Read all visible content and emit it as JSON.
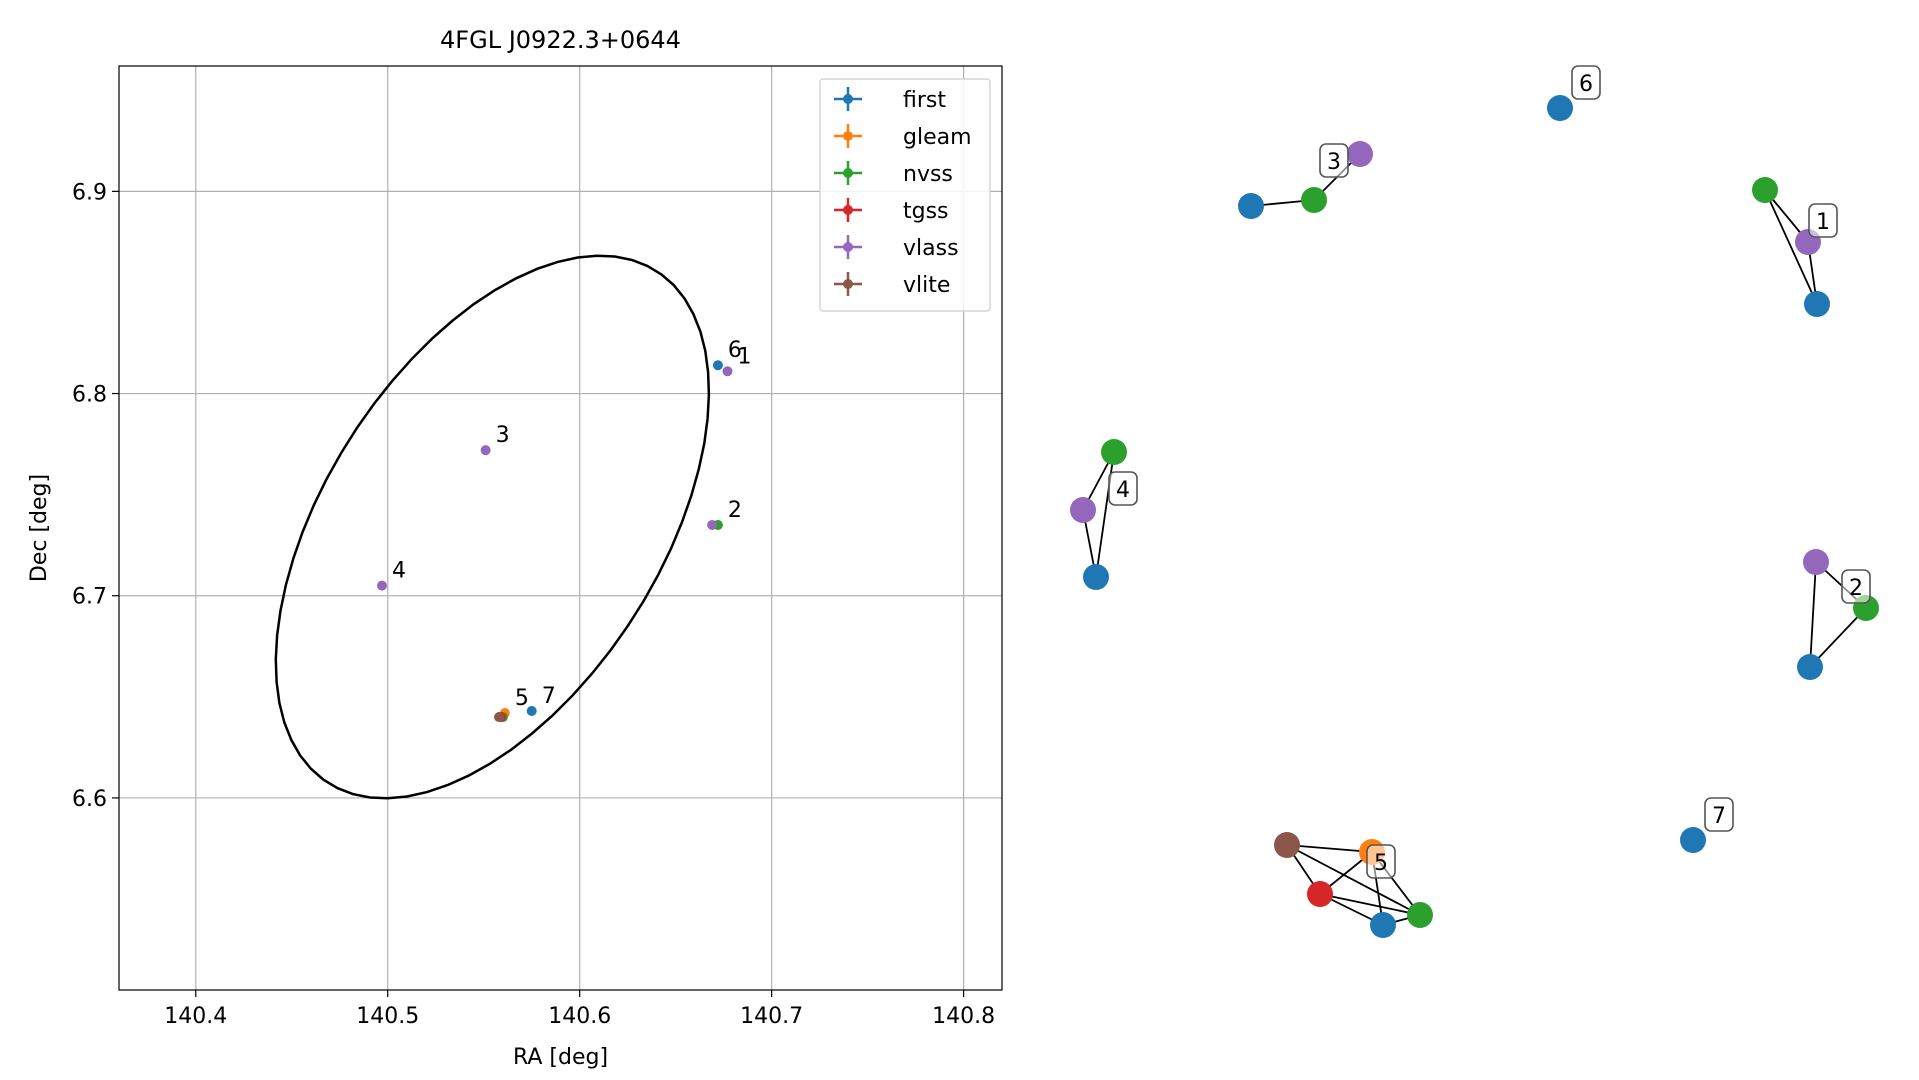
{
  "chart_data": [
    {
      "type": "scatter",
      "title": "4FGL J0922.3+0644",
      "xlabel": "RA [deg]",
      "ylabel": "Dec [deg]",
      "xlim": [
        140.36,
        140.82
      ],
      "ylim": [
        6.505,
        6.962
      ],
      "xticks": [
        140.4,
        140.5,
        140.6,
        140.7,
        140.8
      ],
      "yticks": [
        6.6,
        6.7,
        6.8,
        6.9
      ],
      "xtick_labels": [
        "140.4",
        "140.5",
        "140.6",
        "140.7",
        "140.8"
      ],
      "ytick_labels": [
        "6.6",
        "6.7",
        "6.8",
        "6.9"
      ],
      "grid": true,
      "legend_position": "top-right",
      "colors": {
        "first": "#1f77b4",
        "gleam": "#ff7f0e",
        "nvss": "#2ca02c",
        "tgss": "#d62728",
        "vlass": "#9467bd",
        "vlite": "#8c564b"
      },
      "series": [
        {
          "name": "first",
          "points": [
            {
              "x": 140.672,
              "y": 6.814
            },
            {
              "x": 140.575,
              "y": 6.643
            },
            {
              "x": 140.559,
              "y": 6.64
            }
          ]
        },
        {
          "name": "gleam",
          "points": [
            {
              "x": 140.561,
              "y": 6.642
            }
          ]
        },
        {
          "name": "nvss",
          "points": [
            {
              "x": 140.672,
              "y": 6.735
            },
            {
              "x": 140.56,
              "y": 6.64
            }
          ]
        },
        {
          "name": "tgss",
          "points": [
            {
              "x": 140.559,
              "y": 6.64
            }
          ]
        },
        {
          "name": "vlass",
          "points": [
            {
              "x": 140.677,
              "y": 6.811
            },
            {
              "x": 140.669,
              "y": 6.735
            },
            {
              "x": 140.551,
              "y": 6.772
            },
            {
              "x": 140.497,
              "y": 6.705
            }
          ]
        },
        {
          "name": "vlite",
          "points": [
            {
              "x": 140.558,
              "y": 6.64
            }
          ]
        }
      ],
      "annotations": [
        {
          "text": "1",
          "x": 140.677,
          "y": 6.811
        },
        {
          "text": "2",
          "x": 140.672,
          "y": 6.735
        },
        {
          "text": "3",
          "x": 140.551,
          "y": 6.772
        },
        {
          "text": "4",
          "x": 140.497,
          "y": 6.705
        },
        {
          "text": "5",
          "x": 140.561,
          "y": 6.642
        },
        {
          "text": "6",
          "x": 140.672,
          "y": 6.814
        },
        {
          "text": "7",
          "x": 140.575,
          "y": 6.643
        }
      ],
      "ellipse": {
        "center_ra": 140.5545,
        "center_dec": 6.734,
        "semi_major_deg": 0.1525,
        "semi_minor_deg": 0.0855,
        "angle_deg": 55
      }
    },
    {
      "type": "network-graph",
      "groups": [
        {
          "label": "1",
          "nodes": [
            "nvss",
            "vlass",
            "first"
          ],
          "edges": [
            [
              0,
              1
            ],
            [
              0,
              2
            ],
            [
              1,
              2
            ]
          ]
        },
        {
          "label": "2",
          "nodes": [
            "vlass",
            "nvss",
            "first"
          ],
          "edges": [
            [
              0,
              1
            ],
            [
              0,
              2
            ],
            [
              1,
              2
            ]
          ]
        },
        {
          "label": "3",
          "nodes": [
            "first",
            "nvss",
            "vlass"
          ],
          "edges": [
            [
              0,
              1
            ],
            [
              1,
              2
            ]
          ]
        },
        {
          "label": "4",
          "nodes": [
            "nvss",
            "vlass",
            "first"
          ],
          "edges": [
            [
              0,
              1
            ],
            [
              0,
              2
            ],
            [
              1,
              2
            ]
          ]
        },
        {
          "label": "5",
          "nodes": [
            "vlite",
            "gleam",
            "tgss",
            "first",
            "nvss"
          ],
          "edges": [
            [
              0,
              1
            ],
            [
              0,
              2
            ],
            [
              0,
              4
            ],
            [
              1,
              2
            ],
            [
              1,
              3
            ],
            [
              1,
              4
            ],
            [
              2,
              3
            ],
            [
              3,
              4
            ],
            [
              2,
              4
            ]
          ]
        },
        {
          "label": "6",
          "nodes": [
            "first"
          ],
          "edges": []
        },
        {
          "label": "7",
          "nodes": [
            "first"
          ],
          "edges": []
        }
      ]
    }
  ]
}
